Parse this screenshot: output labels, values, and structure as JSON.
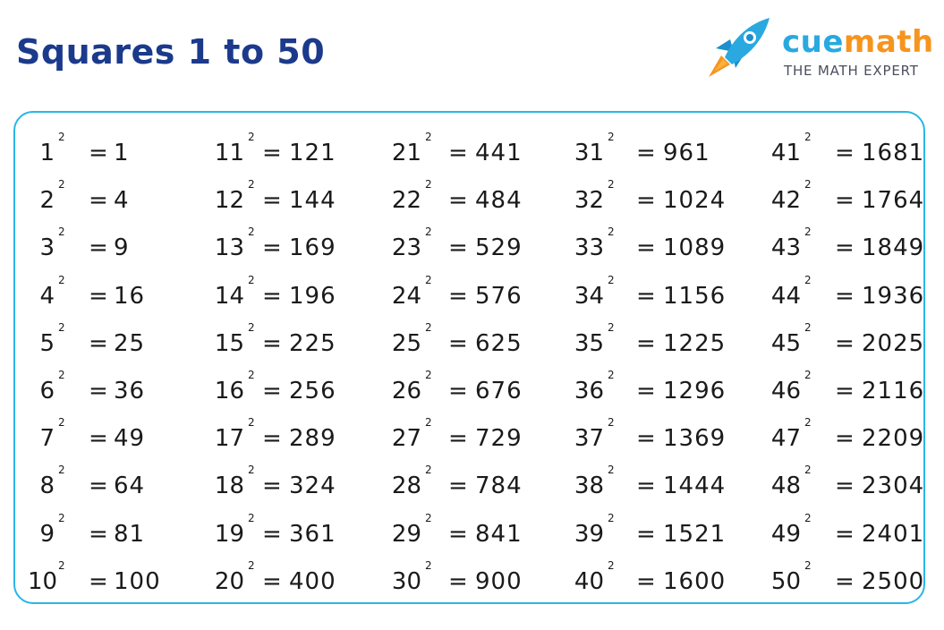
{
  "title": "Squares 1 to 50",
  "logo": {
    "name_part1": "cue",
    "name_part2": "math",
    "tagline": "THE MATH EXPERT",
    "icon": "rocket-icon",
    "colors": {
      "cue": "#29a9e0",
      "math": "#f7941d",
      "tagline": "#4a4f5e"
    }
  },
  "accent_color": "#29b6e8",
  "title_color": "#1b3a8c",
  "exponent": "2",
  "equals": "=",
  "columns": [
    [
      {
        "n": "1",
        "v": "1"
      },
      {
        "n": "2",
        "v": "4"
      },
      {
        "n": "3",
        "v": "9"
      },
      {
        "n": "4",
        "v": "16"
      },
      {
        "n": "5",
        "v": "25"
      },
      {
        "n": "6",
        "v": "36"
      },
      {
        "n": "7",
        "v": "49"
      },
      {
        "n": "8",
        "v": "64"
      },
      {
        "n": "9",
        "v": "81"
      },
      {
        "n": "10",
        "v": "100"
      }
    ],
    [
      {
        "n": "11",
        "v": "121"
      },
      {
        "n": "12",
        "v": "144"
      },
      {
        "n": "13",
        "v": "169"
      },
      {
        "n": "14",
        "v": "196"
      },
      {
        "n": "15",
        "v": "225"
      },
      {
        "n": "16",
        "v": "256"
      },
      {
        "n": "17",
        "v": "289"
      },
      {
        "n": "18",
        "v": "324"
      },
      {
        "n": "19",
        "v": "361"
      },
      {
        "n": "20",
        "v": "400"
      }
    ],
    [
      {
        "n": "21",
        "v": "441"
      },
      {
        "n": "22",
        "v": "484"
      },
      {
        "n": "23",
        "v": "529"
      },
      {
        "n": "24",
        "v": "576"
      },
      {
        "n": "25",
        "v": "625"
      },
      {
        "n": "26",
        "v": "676"
      },
      {
        "n": "27",
        "v": "729"
      },
      {
        "n": "28",
        "v": "784"
      },
      {
        "n": "29",
        "v": "841"
      },
      {
        "n": "30",
        "v": "900"
      }
    ],
    [
      {
        "n": "31",
        "v": "961"
      },
      {
        "n": "32",
        "v": "1024"
      },
      {
        "n": "33",
        "v": "1089"
      },
      {
        "n": "34",
        "v": "1156"
      },
      {
        "n": "35",
        "v": "1225"
      },
      {
        "n": "36",
        "v": "1296"
      },
      {
        "n": "37",
        "v": "1369"
      },
      {
        "n": "38",
        "v": "1444"
      },
      {
        "n": "39",
        "v": "1521"
      },
      {
        "n": "40",
        "v": "1600"
      }
    ],
    [
      {
        "n": "41",
        "v": "1681"
      },
      {
        "n": "42",
        "v": "1764"
      },
      {
        "n": "43",
        "v": "1849"
      },
      {
        "n": "44",
        "v": "1936"
      },
      {
        "n": "45",
        "v": "2025"
      },
      {
        "n": "46",
        "v": "2116"
      },
      {
        "n": "47",
        "v": "2209"
      },
      {
        "n": "48",
        "v": "2304"
      },
      {
        "n": "49",
        "v": "2401"
      },
      {
        "n": "50",
        "v": "2500"
      }
    ]
  ]
}
